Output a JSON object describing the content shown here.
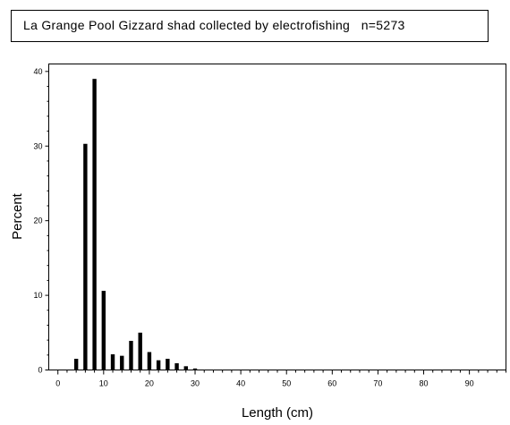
{
  "chart_data": {
    "type": "bar",
    "title": "La Grange Pool Gizzard shad collected by electrofishing   n=5273",
    "xlabel": "Length (cm)",
    "ylabel": "Percent",
    "xlim": [
      -2,
      98
    ],
    "ylim": [
      0,
      41
    ],
    "xticks": [
      0,
      10,
      20,
      30,
      40,
      50,
      60,
      70,
      80,
      90
    ],
    "yticks": [
      0,
      10,
      20,
      30,
      40
    ],
    "x": [
      4,
      6,
      8,
      10,
      12,
      14,
      16,
      18,
      20,
      22,
      24,
      26,
      28,
      30
    ],
    "values": [
      1.5,
      30.3,
      39.0,
      10.6,
      2.1,
      1.9,
      3.9,
      5.0,
      2.4,
      1.3,
      1.5,
      0.9,
      0.5,
      0.2
    ],
    "grid": false,
    "legend": "none",
    "bar_color": "#000000"
  }
}
